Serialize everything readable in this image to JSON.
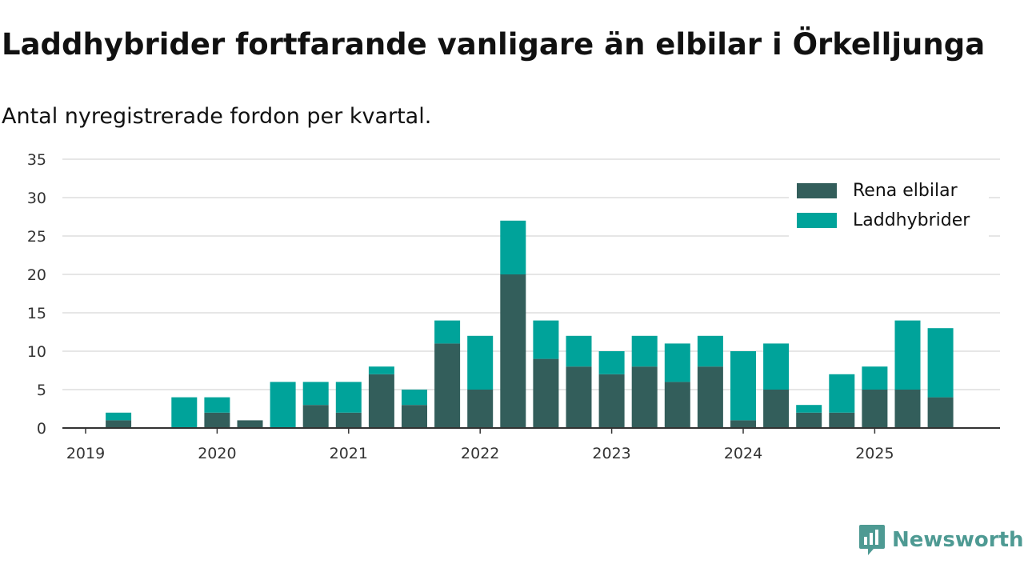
{
  "title": "Laddhybrider fortfarande vanligare än elbilar i Örkelljunga",
  "subtitle": "Antal nyregistrerade fordon per kvartal.",
  "brand": "Newsworthy",
  "colors": {
    "elbilar": "#335e5b",
    "laddhybrider": "#00a39a",
    "grid": "#dddddd",
    "axis": "#333333",
    "brand": "#4e9a93"
  },
  "chart_data": {
    "type": "bar",
    "stacked": true,
    "x": [
      "2019-Q1",
      "2019-Q2",
      "2019-Q3",
      "2019-Q4",
      "2020-Q1",
      "2020-Q2",
      "2020-Q3",
      "2020-Q4",
      "2021-Q1",
      "2021-Q2",
      "2021-Q3",
      "2021-Q4",
      "2022-Q1",
      "2022-Q2",
      "2022-Q3",
      "2022-Q4",
      "2023-Q1",
      "2023-Q2",
      "2023-Q3",
      "2023-Q4",
      "2024-Q1",
      "2024-Q2",
      "2024-Q3",
      "2024-Q4",
      "2025-Q1",
      "2025-Q2",
      "2025-Q3"
    ],
    "series": [
      {
        "name": "Rena elbilar",
        "values": [
          0,
          1,
          0,
          0,
          2,
          1,
          0,
          3,
          2,
          7,
          3,
          11,
          5,
          20,
          9,
          8,
          7,
          8,
          6,
          8,
          1,
          5,
          2,
          2,
          5,
          5,
          4
        ]
      },
      {
        "name": "Laddhybrider",
        "values": [
          0,
          1,
          0,
          4,
          2,
          0,
          6,
          3,
          4,
          1,
          2,
          3,
          7,
          7,
          5,
          4,
          3,
          4,
          5,
          4,
          9,
          6,
          1,
          5,
          3,
          9,
          9
        ]
      }
    ],
    "ylim": [
      0,
      35
    ],
    "yticks": [
      "0",
      "5",
      "10",
      "15",
      "20",
      "25",
      "30",
      "35"
    ],
    "xticks": [
      {
        "label": "2019",
        "index": 0
      },
      {
        "label": "2020",
        "index": 4
      },
      {
        "label": "2021",
        "index": 8
      },
      {
        "label": "2022",
        "index": 12
      },
      {
        "label": "2023",
        "index": 16
      },
      {
        "label": "2024",
        "index": 20
      },
      {
        "label": "2025",
        "index": 24
      }
    ],
    "legend": {
      "position": "top-right",
      "entries": [
        "Rena elbilar",
        "Laddhybrider"
      ]
    },
    "grid": true,
    "xlabel": "",
    "ylabel": ""
  }
}
